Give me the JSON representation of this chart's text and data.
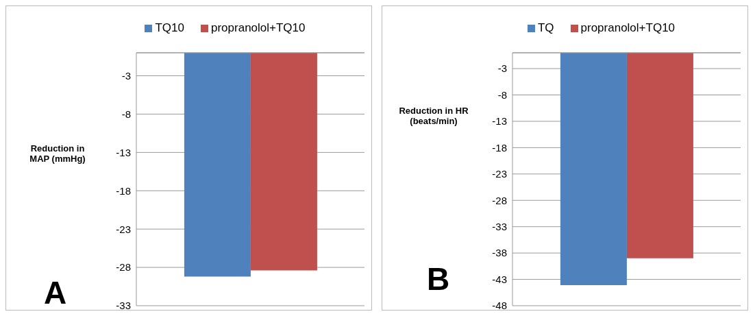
{
  "chart_data": [
    {
      "type": "bar",
      "categories": [
        null
      ],
      "ylabel": "Reduction in MAP (mmHg)",
      "annotations": [
        "A"
      ],
      "series": [
        {
          "name": "TQ10",
          "color": "#4f81bd",
          "values": [
            -29.2
          ]
        },
        {
          "name": "propranolol+TQ10",
          "color": "#c0504d",
          "values": [
            -28.4
          ]
        }
      ],
      "ylim": [
        -33,
        0
      ],
      "yticks": [
        -33,
        -28,
        -23,
        -18,
        -13,
        -8,
        -3
      ],
      "grid": "y",
      "legend": "top"
    },
    {
      "type": "bar",
      "categories": [
        null
      ],
      "ylabel": "Reduction in HR (beats/min)",
      "annotations": [
        "B"
      ],
      "series": [
        {
          "name": "TQ",
          "color": "#4f81bd",
          "values": [
            -44.1
          ]
        },
        {
          "name": "propranolol+TQ10",
          "color": "#c0504d",
          "values": [
            -39.0
          ]
        }
      ],
      "ylim": [
        -48,
        0
      ],
      "yticks": [
        -48,
        -43,
        -38,
        -33,
        -28,
        -23,
        -18,
        -13,
        -8,
        -3
      ],
      "grid": "y",
      "legend": "top"
    }
  ]
}
